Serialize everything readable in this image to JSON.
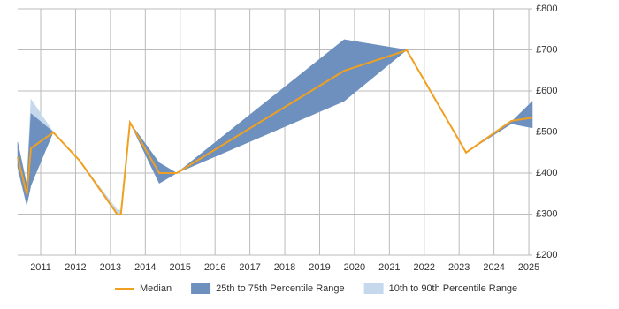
{
  "chart_data": {
    "type": "area-line",
    "x": [
      2010.34,
      2010.6,
      2010.72,
      2011.36,
      2012.12,
      2013.2,
      2013.3,
      2013.56,
      2014.4,
      2014.9,
      2019.7,
      2021.5,
      2023.2,
      2024.5,
      2025.1
    ],
    "series": [
      {
        "name": "10th to 90th Percentile Range",
        "color": "#c6d9ec",
        "low": [
          410,
          320,
          370,
          500,
          430,
          300,
          300,
          523,
          375,
          400,
          575,
          700,
          450,
          520,
          510
        ],
        "high": [
          475,
          375,
          580,
          500,
          430,
          310,
          310,
          523,
          425,
          400,
          725,
          700,
          450,
          525,
          575
        ]
      },
      {
        "name": "25th to 75th Percentile Range",
        "color": "#6e90bf",
        "low": [
          415,
          323,
          370,
          500,
          430,
          300,
          300,
          523,
          375,
          400,
          575,
          700,
          450,
          520,
          510
        ],
        "high": [
          475,
          370,
          545,
          500,
          430,
          300,
          300,
          523,
          425,
          400,
          725,
          700,
          450,
          525,
          575
        ]
      },
      {
        "name": "Median",
        "color": "#f0a020",
        "values": [
          439,
          348,
          460,
          499,
          430,
          299,
          299,
          523,
          400,
          400,
          649,
          699,
          450,
          527,
          535
        ]
      }
    ],
    "xlim": [
      2010.34,
      2025.1
    ],
    "xticks": [
      2011,
      2012,
      2013,
      2014,
      2015,
      2016,
      2017,
      2018,
      2019,
      2020,
      2021,
      2022,
      2023,
      2024,
      2025
    ],
    "ylim": [
      200,
      800
    ],
    "yticks": [
      {
        "value": 200,
        "label": "£200"
      },
      {
        "value": 300,
        "label": "£300"
      },
      {
        "value": 400,
        "label": "£400"
      },
      {
        "value": 500,
        "label": "£500"
      },
      {
        "value": 600,
        "label": "£600"
      },
      {
        "value": 700,
        "label": "£700"
      },
      {
        "value": 800,
        "label": "£800"
      }
    ],
    "grid": true
  }
}
